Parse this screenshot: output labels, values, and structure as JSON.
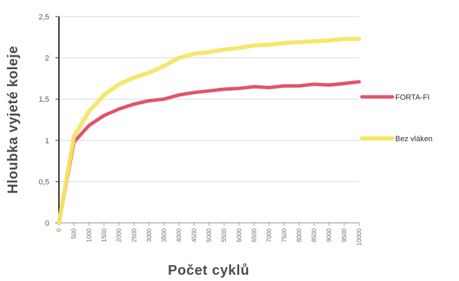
{
  "chart_data": {
    "type": "line",
    "xlabel": "Počet cyklů",
    "ylabel": "Hloubka vyjeté koleje",
    "ylim": [
      0,
      2.5
    ],
    "y_ticks": [
      "0",
      "0,5",
      "1",
      "1,5",
      "2",
      "2,5"
    ],
    "x": [
      0,
      500,
      1000,
      1500,
      2000,
      2500,
      3000,
      3500,
      4000,
      4500,
      5000,
      5500,
      6000,
      6500,
      7000,
      7500,
      8000,
      8500,
      9000,
      9500,
      10000
    ],
    "x_tick_labels": [
      "0",
      "500",
      "1000",
      "1500",
      "2000",
      "2500",
      "3000",
      "3500",
      "4000",
      "4500",
      "5000",
      "5500",
      "6000",
      "6500",
      "7000",
      "7500",
      "8000",
      "8500",
      "9000",
      "9500",
      "10000"
    ],
    "grid": true,
    "legend_position": "right",
    "series": [
      {
        "name": "FORTA-FI",
        "color": "#e2536b",
        "values": [
          0.0,
          0.98,
          1.18,
          1.3,
          1.38,
          1.44,
          1.48,
          1.5,
          1.55,
          1.58,
          1.6,
          1.62,
          1.63,
          1.65,
          1.64,
          1.66,
          1.66,
          1.68,
          1.67,
          1.69,
          1.71
        ]
      },
      {
        "name": "Bez vláken",
        "color": "#f5e663",
        "values": [
          0.0,
          1.05,
          1.35,
          1.55,
          1.68,
          1.76,
          1.82,
          1.9,
          2.0,
          2.05,
          2.07,
          2.1,
          2.12,
          2.15,
          2.16,
          2.18,
          2.19,
          2.2,
          2.21,
          2.23,
          2.23
        ]
      }
    ]
  }
}
